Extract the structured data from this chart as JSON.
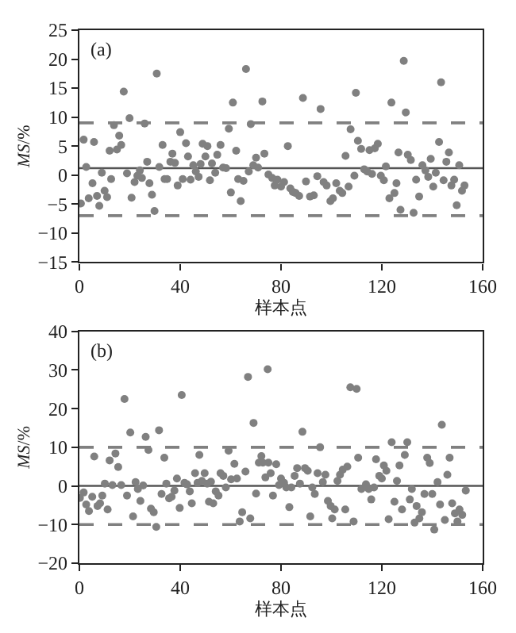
{
  "chart_data": [
    {
      "type": "scatter",
      "title": "(a)",
      "xlabel": "样本点",
      "ylabel": "MS/%",
      "color": "#808080",
      "marker": "circle",
      "grid": false,
      "xlim": [
        0,
        160
      ],
      "xticks": [
        0,
        40,
        80,
        120,
        160
      ],
      "ylim": [
        -15,
        25
      ],
      "yticks": [
        -15,
        -10,
        -5,
        0,
        5,
        10,
        15,
        20,
        25
      ],
      "ref_lines": [
        {
          "axis": "y",
          "value": 1.2,
          "color": "#555555",
          "line_style": "solid"
        },
        {
          "axis": "y",
          "value": 9.0,
          "color": "#808080",
          "line_style": "dashed"
        },
        {
          "axis": "y",
          "value": -7.0,
          "color": "#808080",
          "line_style": "dashed"
        }
      ],
      "x": [
        0.6,
        1.7,
        2.7,
        3.7,
        5.2,
        5.8,
        7.0,
        7.9,
        8.9,
        10.0,
        11.0,
        12.0,
        12.6,
        13.7,
        14.9,
        15.8,
        16.6,
        17.6,
        18.9,
        19.9,
        20.7,
        21.9,
        23.0,
        24.0,
        24.8,
        25.9,
        26.9,
        27.8,
        28.8,
        29.8,
        30.7,
        31.7,
        33.0,
        33.8,
        34.8,
        36.1,
        36.9,
        37.9,
        39.0,
        40.0,
        41.0,
        42.3,
        43.1,
        44.1,
        45.2,
        46.2,
        47.3,
        48.1,
        48.9,
        50.0,
        50.8,
        51.8,
        52.6,
        53.9,
        54.7,
        56.0,
        57.0,
        58.2,
        59.3,
        60.1,
        60.9,
        62.2,
        63.0,
        64.0,
        65.1,
        66.1,
        67.2,
        68.0,
        69.0,
        70.1,
        70.9,
        72.6,
        73.4,
        75.0,
        76.5,
        77.5,
        78.6,
        80.0,
        81.2,
        82.7,
        83.7,
        84.7,
        85.8,
        87.2,
        88.7,
        89.9,
        91.5,
        93.0,
        94.4,
        95.7,
        96.9,
        98.1,
        99.6,
        100.6,
        101.9,
        103.3,
        104.3,
        105.6,
        106.8,
        107.6,
        109.1,
        109.7,
        110.5,
        111.8,
        113.0,
        114.2,
        115.1,
        116.1,
        117.2,
        118.4,
        119.6,
        120.8,
        121.6,
        123.0,
        123.8,
        125.0,
        125.8,
        126.6,
        127.4,
        128.7,
        129.5,
        130.3,
        131.5,
        132.6,
        133.6,
        134.8,
        136.1,
        137.3,
        138.4,
        139.4,
        140.4,
        141.4,
        142.7,
        143.5,
        144.5,
        145.6,
        146.6,
        147.6,
        148.7,
        149.7,
        150.7,
        151.8,
        152.8
      ],
      "values": [
        -4.9,
        6.1,
        1.4,
        -4.0,
        -1.4,
        5.7,
        -3.6,
        -5.3,
        0.4,
        -2.7,
        -3.8,
        4.2,
        -0.7,
        8.6,
        4.4,
        6.8,
        5.2,
        14.4,
        0.3,
        9.8,
        -3.9,
        -1.2,
        -0.1,
        0.8,
        -0.5,
        8.9,
        2.3,
        -1.4,
        -3.4,
        -6.2,
        17.5,
        1.4,
        5.2,
        -0.7,
        -0.7,
        2.3,
        3.7,
        2.1,
        -1.8,
        7.4,
        -0.7,
        5.5,
        3.2,
        -0.8,
        1.7,
        0.6,
        -0.3,
        1.9,
        5.4,
        3.2,
        5.0,
        -0.9,
        2.0,
        0.4,
        3.5,
        5.2,
        1.3,
        1.2,
        8.0,
        -3.0,
        12.5,
        4.2,
        -0.7,
        -4.5,
        -1.0,
        18.3,
        0.6,
        8.8,
        1.7,
        3.0,
        1.3,
        12.7,
        3.7,
        0.1,
        -0.5,
        -1.8,
        -0.8,
        -2.0,
        -1.2,
        5.0,
        -2.3,
        -2.9,
        -3.1,
        -3.6,
        13.3,
        -1.1,
        -3.7,
        -3.5,
        -0.2,
        11.4,
        -1.2,
        -1.8,
        -4.5,
        -4.0,
        -1.4,
        -2.7,
        -3.1,
        3.3,
        -2.0,
        7.9,
        -0.1,
        14.2,
        5.9,
        4.5,
        1.0,
        0.6,
        4.3,
        0.2,
        4.6,
        5.4,
        -0.1,
        -0.9,
        1.5,
        -4.0,
        12.5,
        -3.1,
        -1.4,
        3.9,
        -6.0,
        19.7,
        10.8,
        3.5,
        2.6,
        -6.5,
        -0.8,
        -3.7,
        1.7,
        0.8,
        -0.3,
        2.8,
        -2.0,
        0.4,
        5.7,
        16.0,
        -0.9,
        2.3,
        3.9,
        -1.8,
        -0.8,
        -5.2,
        1.7,
        -2.7,
        -1.8
      ]
    },
    {
      "type": "scatter",
      "title": "(b)",
      "xlabel": "样本点",
      "ylabel": "MS/%",
      "color": "#808080",
      "marker": "circle",
      "grid": false,
      "xlim": [
        0,
        160
      ],
      "xticks": [
        0,
        40,
        80,
        120,
        160
      ],
      "ylim": [
        -20,
        40
      ],
      "yticks": [
        -20,
        -10,
        0,
        10,
        20,
        30,
        40
      ],
      "ref_lines": [
        {
          "axis": "y",
          "value": 0,
          "color": "#555555",
          "line_style": "solid"
        },
        {
          "axis": "y",
          "value": 10,
          "color": "#808080",
          "line_style": "dashed"
        },
        {
          "axis": "y",
          "value": -10,
          "color": "#808080",
          "line_style": "dashed"
        }
      ],
      "x": [
        0.2,
        1.7,
        2.7,
        3.8,
        5.1,
        5.9,
        7.2,
        8.2,
        9.1,
        10.1,
        11.2,
        12.0,
        13.1,
        14.3,
        15.4,
        16.6,
        17.9,
        18.9,
        20.2,
        21.3,
        22.3,
        23.2,
        24.2,
        25.3,
        26.3,
        27.4,
        28.4,
        29.5,
        30.5,
        31.6,
        32.6,
        33.7,
        34.5,
        35.6,
        36.6,
        37.7,
        38.7,
        39.8,
        40.6,
        41.7,
        42.7,
        43.8,
        44.6,
        45.9,
        46.9,
        47.6,
        48.6,
        49.7,
        50.7,
        51.4,
        52.2,
        53.1,
        54.1,
        55.2,
        56.0,
        57.1,
        58.1,
        59.2,
        60.2,
        61.5,
        62.5,
        63.6,
        64.6,
        65.9,
        66.9,
        67.8,
        69.1,
        70.1,
        71.2,
        72.2,
        72.8,
        73.8,
        74.7,
        75.0,
        75.9,
        76.8,
        78.1,
        79.2,
        80.0,
        81.2,
        82.1,
        83.3,
        84.1,
        85.4,
        86.4,
        87.5,
        88.5,
        89.5,
        90.6,
        91.6,
        92.4,
        93.4,
        94.5,
        95.5,
        96.6,
        97.6,
        98.6,
        99.7,
        100.3,
        101.3,
        102.4,
        103.4,
        104.5,
        105.5,
        106.3,
        107.5,
        108.8,
        110.0,
        110.6,
        111.9,
        113.7,
        114.8,
        115.8,
        116.9,
        117.7,
        119.0,
        120.0,
        120.8,
        121.8,
        122.7,
        123.9,
        125.0,
        126.0,
        127.0,
        128.0,
        129.1,
        130.1,
        131.1,
        131.9,
        133.0,
        133.8,
        134.9,
        135.9,
        136.9,
        138.0,
        139.0,
        140.0,
        140.8,
        142.1,
        143.1,
        143.8,
        145.0,
        146.0,
        146.9,
        147.9,
        149.0,
        150.0,
        150.8,
        151.9,
        153.3
      ],
      "values": [
        -3.1,
        -1.7,
        -4.8,
        -6.5,
        -2.8,
        7.6,
        -5.2,
        -4.5,
        -2.5,
        0.6,
        -6.1,
        6.6,
        0.2,
        8.4,
        4.9,
        0.2,
        22.5,
        -2.5,
        13.8,
        -7.9,
        1.0,
        -0.8,
        -3.9,
        0.1,
        12.7,
        9.3,
        -5.9,
        -6.8,
        -10.6,
        14.4,
        -2.1,
        7.3,
        0.6,
        -3.2,
        -2.8,
        -1.2,
        1.9,
        -5.7,
        23.5,
        0.8,
        0.4,
        -1.4,
        -4.5,
        3.3,
        0.8,
        8.0,
        1.3,
        3.3,
        0.6,
        -4.1,
        1.1,
        -4.5,
        -1.4,
        -2.5,
        3.3,
        2.6,
        -0.4,
        9.1,
        1.7,
        5.7,
        1.9,
        -9.2,
        -6.8,
        3.7,
        28.2,
        -8.4,
        16.3,
        -2.0,
        6.0,
        7.7,
        6.0,
        2.2,
        30.2,
        6.0,
        3.3,
        -2.5,
        5.6,
        0.2,
        1.9,
        0.8,
        -0.4,
        -5.5,
        -0.4,
        2.6,
        4.6,
        0.6,
        14.0,
        4.6,
        3.9,
        -7.9,
        -0.4,
        -2.1,
        3.3,
        10.0,
        1.0,
        2.9,
        -3.9,
        -5.2,
        -8.4,
        -6.1,
        1.3,
        2.9,
        4.2,
        -6.1,
        5.0,
        25.5,
        -9.2,
        25.1,
        7.3,
        -0.8,
        0.4,
        -0.8,
        -3.5,
        -0.4,
        6.9,
        2.6,
        1.9,
        5.3,
        3.9,
        -8.6,
        11.3,
        -4.1,
        1.3,
        5.3,
        -6.1,
        8.0,
        11.3,
        -3.5,
        -0.8,
        -9.5,
        -5.2,
        -8.4,
        -6.8,
        -2.1,
        7.3,
        5.9,
        -2.1,
        -11.3,
        1.0,
        -4.8,
        15.8,
        -8.8,
        2.9,
        7.3,
        -4.5,
        -7.1,
        -9.2,
        -6.1,
        -7.5,
        -1.2
      ]
    }
  ]
}
